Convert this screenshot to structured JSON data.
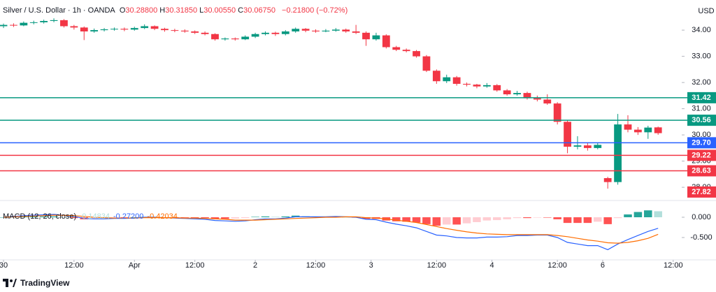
{
  "chart_data": {
    "type": "candlestick",
    "title": "Silver / U.S. Dollar · 1h · OANDA",
    "ohlc_legend": [
      {
        "label": "O",
        "text": "30.28800"
      },
      {
        "label": "H",
        "text": "30.31850"
      },
      {
        "label": "L",
        "text": "30.00550"
      },
      {
        "label": "C",
        "text": "30.06750"
      }
    ],
    "change": "−0.21800 (−0.72%)",
    "currency": "USD",
    "up_color": "#089981",
    "down_color": "#f23645",
    "x": [
      0,
      2,
      4,
      6,
      8,
      10,
      12,
      14,
      16,
      18,
      20,
      22,
      24,
      26,
      28,
      30,
      32,
      34,
      36,
      38,
      40,
      42,
      44,
      46,
      48,
      50,
      52,
      54,
      56,
      58,
      60,
      62,
      64,
      66,
      68,
      70,
      72,
      74,
      76,
      78,
      80,
      82,
      84,
      86,
      88,
      90,
      92,
      94,
      96,
      98,
      100,
      102,
      104,
      106,
      108,
      110,
      112,
      114,
      116,
      118,
      120,
      122,
      124,
      126,
      128,
      130
    ],
    "open": [
      34.15,
      34.2,
      34.18,
      34.28,
      34.3,
      34.35,
      34.38,
      34.15,
      34.1,
      33.95,
      34.0,
      34.03,
      34.05,
      34.02,
      34.08,
      34.15,
      34.05,
      34.0,
      33.98,
      33.95,
      33.9,
      33.85,
      33.65,
      33.68,
      33.65,
      33.75,
      33.85,
      33.9,
      33.85,
      33.95,
      34.05,
      33.98,
      33.95,
      33.98,
      34.02,
      33.95,
      33.9,
      33.65,
      33.8,
      33.35,
      33.25,
      33.2,
      33.0,
      32.45,
      32.05,
      32.2,
      31.95,
      31.92,
      31.85,
      31.9,
      31.7,
      31.55,
      31.6,
      31.4,
      31.35,
      31.2,
      30.5,
      29.55,
      29.6,
      29.5,
      28.35,
      28.2,
      30.4,
      30.2,
      30.1,
      30.288
    ],
    "high": [
      34.25,
      34.26,
      34.33,
      34.36,
      34.4,
      34.45,
      34.42,
      34.2,
      34.14,
      34.06,
      34.08,
      34.1,
      34.1,
      34.13,
      34.22,
      34.18,
      34.09,
      34.05,
      34.03,
      33.99,
      33.95,
      33.88,
      33.72,
      33.72,
      33.8,
      33.9,
      33.95,
      33.94,
      34.0,
      34.1,
      34.08,
      34.03,
      34.04,
      34.08,
      34.06,
      34.2,
      33.95,
      33.9,
      33.84,
      33.4,
      33.3,
      33.24,
      33.05,
      32.5,
      32.3,
      32.25,
      32.0,
      31.95,
      31.98,
      31.94,
      31.75,
      31.68,
      31.65,
      31.5,
      31.55,
      31.25,
      30.55,
      29.95,
      29.7,
      29.7,
      28.4,
      30.8,
      30.75,
      30.3,
      30.35,
      30.3185
    ],
    "low": [
      34.08,
      34.12,
      34.15,
      34.22,
      34.25,
      34.3,
      34.1,
      34.02,
      33.62,
      33.9,
      33.95,
      33.98,
      33.96,
      33.98,
      34.04,
      34.0,
      33.94,
      33.92,
      33.9,
      33.85,
      33.8,
      33.6,
      33.6,
      33.6,
      33.62,
      33.7,
      33.8,
      33.78,
      33.8,
      33.9,
      33.92,
      33.9,
      33.92,
      33.94,
      33.9,
      33.85,
      33.4,
      33.6,
      33.3,
      33.2,
      33.15,
      32.95,
      32.4,
      31.95,
      31.98,
      31.88,
      31.85,
      31.78,
      31.8,
      31.65,
      31.5,
      31.5,
      31.35,
      31.28,
      31.15,
      30.4,
      29.3,
      29.45,
      29.4,
      29.45,
      27.95,
      28.1,
      30.1,
      30.0,
      29.85,
      30.0055
    ],
    "close": [
      34.2,
      34.18,
      34.28,
      34.3,
      34.35,
      34.38,
      34.15,
      34.1,
      33.95,
      34.0,
      34.03,
      34.05,
      34.02,
      34.08,
      34.15,
      34.05,
      34.0,
      33.98,
      33.95,
      33.9,
      33.85,
      33.65,
      33.68,
      33.65,
      33.75,
      33.85,
      33.9,
      33.85,
      33.95,
      34.05,
      33.98,
      33.95,
      33.98,
      34.02,
      33.95,
      33.9,
      33.65,
      33.8,
      33.35,
      33.25,
      33.2,
      33.0,
      32.45,
      32.05,
      32.2,
      31.95,
      31.92,
      31.85,
      31.9,
      31.7,
      31.55,
      31.6,
      31.4,
      31.35,
      31.2,
      30.5,
      29.55,
      29.6,
      29.5,
      29.62,
      28.2,
      30.4,
      30.2,
      30.1,
      30.28,
      30.0675
    ],
    "xlim": [
      -0.7,
      134
    ],
    "xticks": [
      {
        "value": 0,
        "label": "30"
      },
      {
        "value": 14,
        "label": "12:00"
      },
      {
        "value": 26,
        "label": "Apr"
      },
      {
        "value": 38,
        "label": "12:00"
      },
      {
        "value": 50,
        "label": "2"
      },
      {
        "value": 62,
        "label": "12:00"
      },
      {
        "value": 73,
        "label": "3"
      },
      {
        "value": 86,
        "label": "12:00"
      },
      {
        "value": 97,
        "label": "4"
      },
      {
        "value": 110,
        "label": "12:00"
      },
      {
        "value": 119,
        "label": "6"
      },
      {
        "value": 133,
        "label": "12:00"
      }
    ],
    "ylim": [
      27.55,
      35.15
    ],
    "yticks": [
      {
        "value": 34,
        "label": "34.00"
      },
      {
        "value": 33,
        "label": "33.00"
      },
      {
        "value": 32,
        "label": "32.00"
      },
      {
        "value": 31,
        "label": "31.00"
      },
      {
        "value": 30,
        "label": "30.00"
      },
      {
        "value": 29,
        "label": "29.00"
      },
      {
        "value": 28,
        "label": "28.00"
      }
    ],
    "levels": [
      {
        "value": 31.42,
        "label": "31.42",
        "color": "#089981",
        "line": true
      },
      {
        "value": 30.56,
        "label": "30.56",
        "color": "#089981",
        "line": true
      },
      {
        "value": 29.7,
        "label": "29.70",
        "color": "#2962ff",
        "line": true
      },
      {
        "value": 29.22,
        "label": "29.22",
        "color": "#f23645",
        "line": true
      },
      {
        "value": 28.63,
        "label": "28.63",
        "color": "#f23645",
        "line": true
      },
      {
        "value": 27.82,
        "label": "27.82",
        "color": "#f23645",
        "line": false
      }
    ],
    "macd": {
      "title": "MACD (12, 26, close)",
      "legend": [
        {
          "text": "0.14834",
          "color": "#b2dfdb"
        },
        {
          "text": "-0.27200",
          "color": "#2962ff"
        },
        {
          "text": "-0.42034",
          "color": "#ff6d00"
        }
      ],
      "ylim": [
        -1.017,
        0.362
      ],
      "yticks": [
        {
          "value": 0,
          "label": "0.000"
        },
        {
          "value": -0.5,
          "label": "-0.500"
        }
      ],
      "histogram_colors": [
        "#26a69a",
        "#b2dfdb",
        "#ff5252",
        "#ffcdd2"
      ],
      "histogram": [
        0,
        0.01,
        0.02,
        0.02,
        0.02,
        0.02,
        0.0,
        -0.02,
        -0.05,
        -0.04,
        -0.03,
        -0.01,
        -0.01,
        0.0,
        0.01,
        0.01,
        0.0,
        -0.01,
        -0.01,
        -0.02,
        -0.02,
        -0.04,
        -0.04,
        -0.03,
        -0.02,
        0.01,
        0.02,
        0.01,
        0.02,
        0.04,
        0.03,
        0.02,
        0.01,
        0.02,
        0.0,
        -0.01,
        -0.04,
        -0.04,
        -0.08,
        -0.1,
        -0.11,
        -0.13,
        -0.17,
        -0.21,
        -0.18,
        -0.18,
        -0.15,
        -0.12,
        -0.08,
        -0.07,
        -0.05,
        -0.02,
        -0.02,
        -0.01,
        -0.01,
        -0.05,
        -0.14,
        -0.14,
        -0.14,
        -0.11,
        -0.17,
        -0.02,
        0.07,
        0.13,
        0.17,
        0.14834
      ],
      "series": [
        {
          "name": "MACD",
          "color": "#2962ff",
          "values": [
            0.0,
            0.02,
            0.04,
            0.05,
            0.06,
            0.07,
            0.05,
            0.02,
            -0.03,
            -0.04,
            -0.04,
            -0.03,
            -0.03,
            -0.02,
            0.0,
            0.0,
            -0.01,
            -0.02,
            -0.03,
            -0.04,
            -0.05,
            -0.08,
            -0.09,
            -0.1,
            -0.09,
            -0.06,
            -0.04,
            -0.04,
            -0.02,
            0.01,
            0.01,
            0.01,
            0.01,
            0.02,
            0.01,
            0.0,
            -0.05,
            -0.06,
            -0.12,
            -0.17,
            -0.21,
            -0.26,
            -0.35,
            -0.44,
            -0.46,
            -0.5,
            -0.51,
            -0.51,
            -0.49,
            -0.49,
            -0.48,
            -0.45,
            -0.45,
            -0.44,
            -0.44,
            -0.5,
            -0.62,
            -0.66,
            -0.7,
            -0.7,
            -0.8,
            -0.66,
            -0.55,
            -0.45,
            -0.35,
            -0.272
          ]
        },
        {
          "name": "Signal",
          "color": "#ff6d00",
          "values": [
            0.0,
            0.01,
            0.02,
            0.03,
            0.04,
            0.05,
            0.05,
            0.04,
            0.02,
            0.0,
            -0.01,
            -0.02,
            -0.02,
            -0.02,
            -0.01,
            -0.01,
            -0.01,
            -0.01,
            -0.02,
            -0.02,
            -0.03,
            -0.04,
            -0.05,
            -0.07,
            -0.07,
            -0.07,
            -0.06,
            -0.05,
            -0.04,
            -0.03,
            -0.02,
            -0.01,
            0.0,
            0.0,
            0.01,
            0.01,
            -0.01,
            -0.02,
            -0.04,
            -0.07,
            -0.1,
            -0.13,
            -0.18,
            -0.23,
            -0.28,
            -0.32,
            -0.36,
            -0.39,
            -0.41,
            -0.42,
            -0.43,
            -0.43,
            -0.43,
            -0.43,
            -0.43,
            -0.45,
            -0.48,
            -0.52,
            -0.56,
            -0.59,
            -0.63,
            -0.64,
            -0.62,
            -0.58,
            -0.52,
            -0.42034
          ]
        }
      ]
    },
    "brand": "TradingView"
  }
}
